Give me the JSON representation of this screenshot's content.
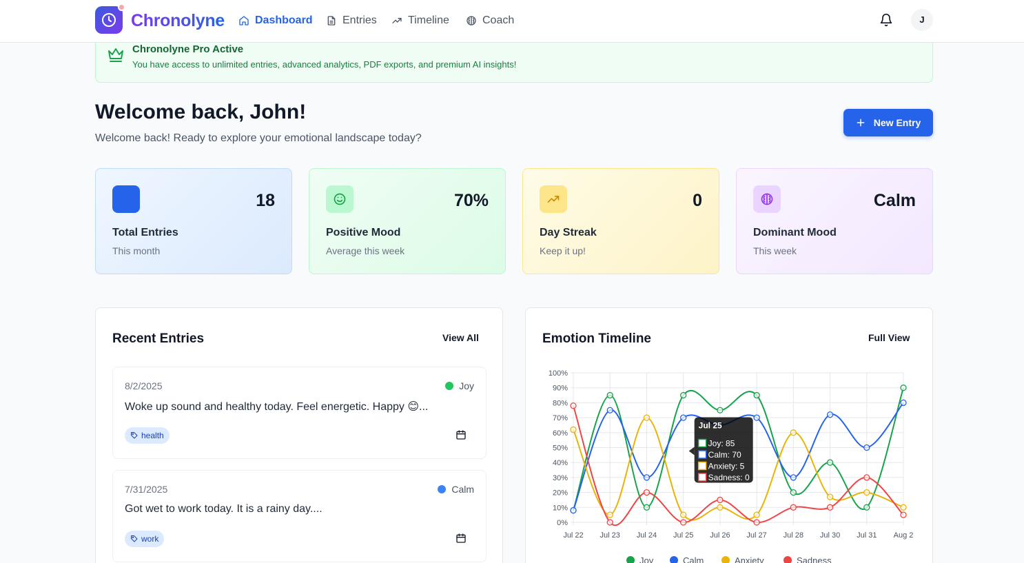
{
  "app": {
    "name": "Chronolyne",
    "user_initial": "J"
  },
  "nav": [
    {
      "label": "Dashboard",
      "icon": "home-icon",
      "active": true
    },
    {
      "label": "Entries",
      "icon": "document-icon",
      "active": false
    },
    {
      "label": "Timeline",
      "icon": "trending-up-icon",
      "active": false
    },
    {
      "label": "Coach",
      "icon": "brain-icon",
      "active": false
    }
  ],
  "pro_banner": {
    "title": "Chronolyne Pro Active",
    "text": "You have access to unlimited entries, advanced analytics, PDF exports, and premium AI insights!",
    "icon": "crown-icon"
  },
  "welcome": {
    "title": "Welcome back, John!",
    "subtitle": "Welcome back! Ready to explore your emotional landscape today?",
    "new_entry_label": "New Entry"
  },
  "stats": [
    {
      "value": "18",
      "label": "Total Entries",
      "sub": "This month",
      "icon": "book-icon",
      "color": "#2563eb"
    },
    {
      "value": "70%",
      "label": "Positive Mood",
      "sub": "Average this week",
      "icon": "smile-icon",
      "color": "#16a34a"
    },
    {
      "value": "0",
      "label": "Day Streak",
      "sub": "Keep it up!",
      "icon": "trending-up-icon",
      "color": "#ca8a04"
    },
    {
      "value": "Calm",
      "label": "Dominant Mood",
      "sub": "This week",
      "icon": "brain-icon",
      "color": "#9333ea"
    }
  ],
  "recent": {
    "title": "Recent Entries",
    "view_all": "View All",
    "entries": [
      {
        "date": "8/2/2025",
        "mood": "Joy",
        "mood_color": "#22c55e",
        "text": "Woke up sound and healthy today. Feel energetic. Happy 😊...",
        "tag": "health"
      },
      {
        "date": "7/31/2025",
        "mood": "Calm",
        "mood_color": "#3b82f6",
        "text": "Got wet to work today. It is a rainy day....",
        "tag": "work"
      }
    ]
  },
  "timeline": {
    "title": "Emotion Timeline",
    "full_view": "Full View"
  },
  "chart_data": {
    "type": "line",
    "x": [
      "Jul 22",
      "Jul 23",
      "Jul 24",
      "Jul 25",
      "Jul 26",
      "Jul 27",
      "Jul 28",
      "Jul 30",
      "Jul 31",
      "Aug 2"
    ],
    "ylim": [
      0,
      100
    ],
    "y_ticks": [
      "0%",
      "10%",
      "20%",
      "30%",
      "40%",
      "50%",
      "60%",
      "70%",
      "80%",
      "90%",
      "100%"
    ],
    "grid": true,
    "legend": "bottom",
    "series": [
      {
        "name": "Joy",
        "color": "#16a34a",
        "values": [
          8,
          85,
          10,
          85,
          75,
          85,
          20,
          40,
          10,
          90
        ]
      },
      {
        "name": "Calm",
        "color": "#2563eb",
        "values": [
          8,
          75,
          30,
          70,
          65,
          70,
          30,
          72,
          50,
          80
        ]
      },
      {
        "name": "Anxiety",
        "color": "#eab308",
        "values": [
          62,
          5,
          70,
          5,
          10,
          5,
          60,
          17,
          20,
          10
        ]
      },
      {
        "name": "Sadness",
        "color": "#ef4444",
        "values": [
          78,
          0,
          20,
          0,
          15,
          0,
          10,
          10,
          30,
          5
        ]
      }
    ],
    "tooltip": {
      "title": "Jul 25",
      "lines": [
        "Joy: 85",
        "Calm: 70",
        "Anxiety: 5",
        "Sadness: 0"
      ]
    }
  }
}
